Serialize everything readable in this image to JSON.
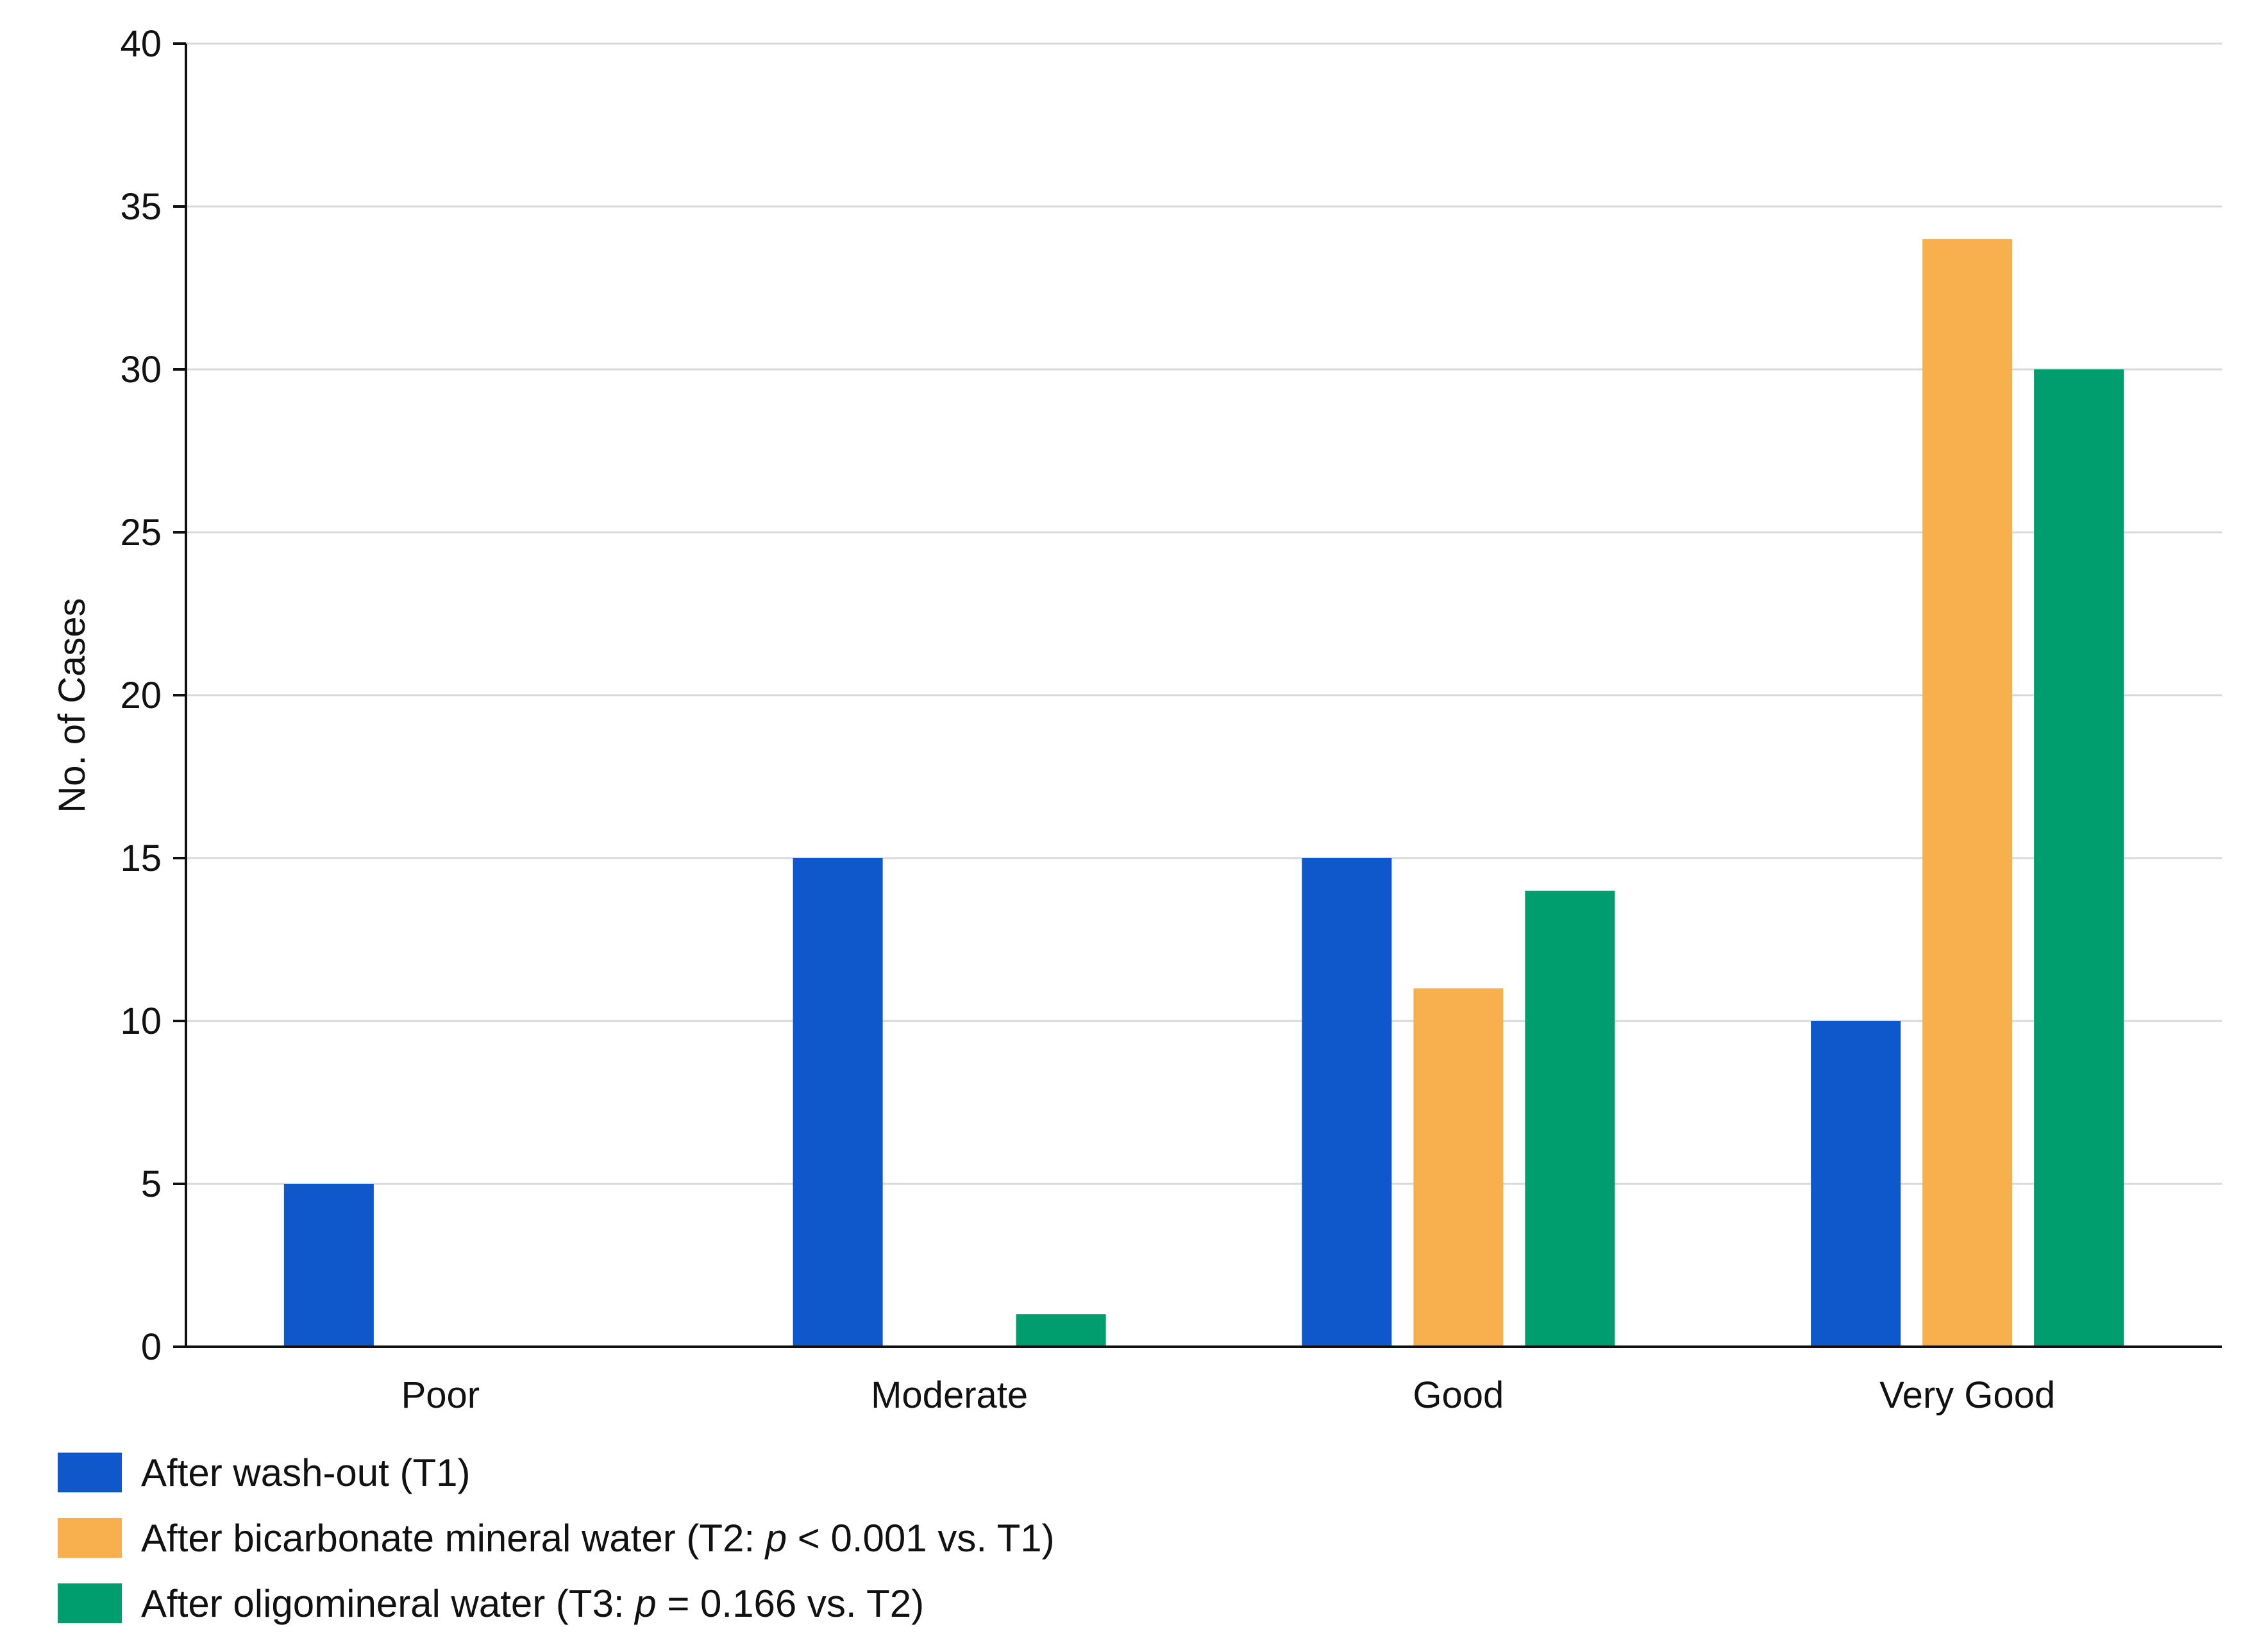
{
  "colors": {
    "t1": "#0f58cc",
    "t2": "#f7b04d",
    "t3": "#009d6e",
    "grid": "#d9d9d9",
    "axis": "#111111"
  },
  "chart_data": {
    "type": "bar",
    "categories": [
      "Poor",
      "Moderate",
      "Good",
      "Very Good"
    ],
    "series": [
      {
        "name": "After wash-out (T1)",
        "values": [
          5,
          15,
          15,
          10
        ],
        "color_key": "t1"
      },
      {
        "name": "After bicarbonate mineral water (T2: p < 0.001 vs. T1)",
        "values": [
          0,
          0,
          11,
          34
        ],
        "color_key": "t2"
      },
      {
        "name": "After oligomineral water (T3: p = 0.166 vs. T2)",
        "values": [
          0,
          1,
          14,
          30
        ],
        "color_key": "t3"
      }
    ],
    "title": "",
    "xlabel": "",
    "ylabel": "No. of Cases",
    "ylim": [
      0,
      40
    ],
    "yticks": [
      0,
      5,
      10,
      15,
      20,
      25,
      30,
      35,
      40
    ],
    "grid": true,
    "legend_position": "bottom-left"
  },
  "legend": [
    {
      "prefix": "After wash-out (T1)",
      "italic": "",
      "suffix": "",
      "color_key": "t1"
    },
    {
      "prefix": "After bicarbonate mineral water (T2: ",
      "italic": "p",
      "suffix": " < 0.001 vs. T1)",
      "color_key": "t2"
    },
    {
      "prefix": "After oligomineral water (T3: ",
      "italic": "p",
      "suffix": " = 0.166 vs. T2)",
      "color_key": "t3"
    }
  ]
}
